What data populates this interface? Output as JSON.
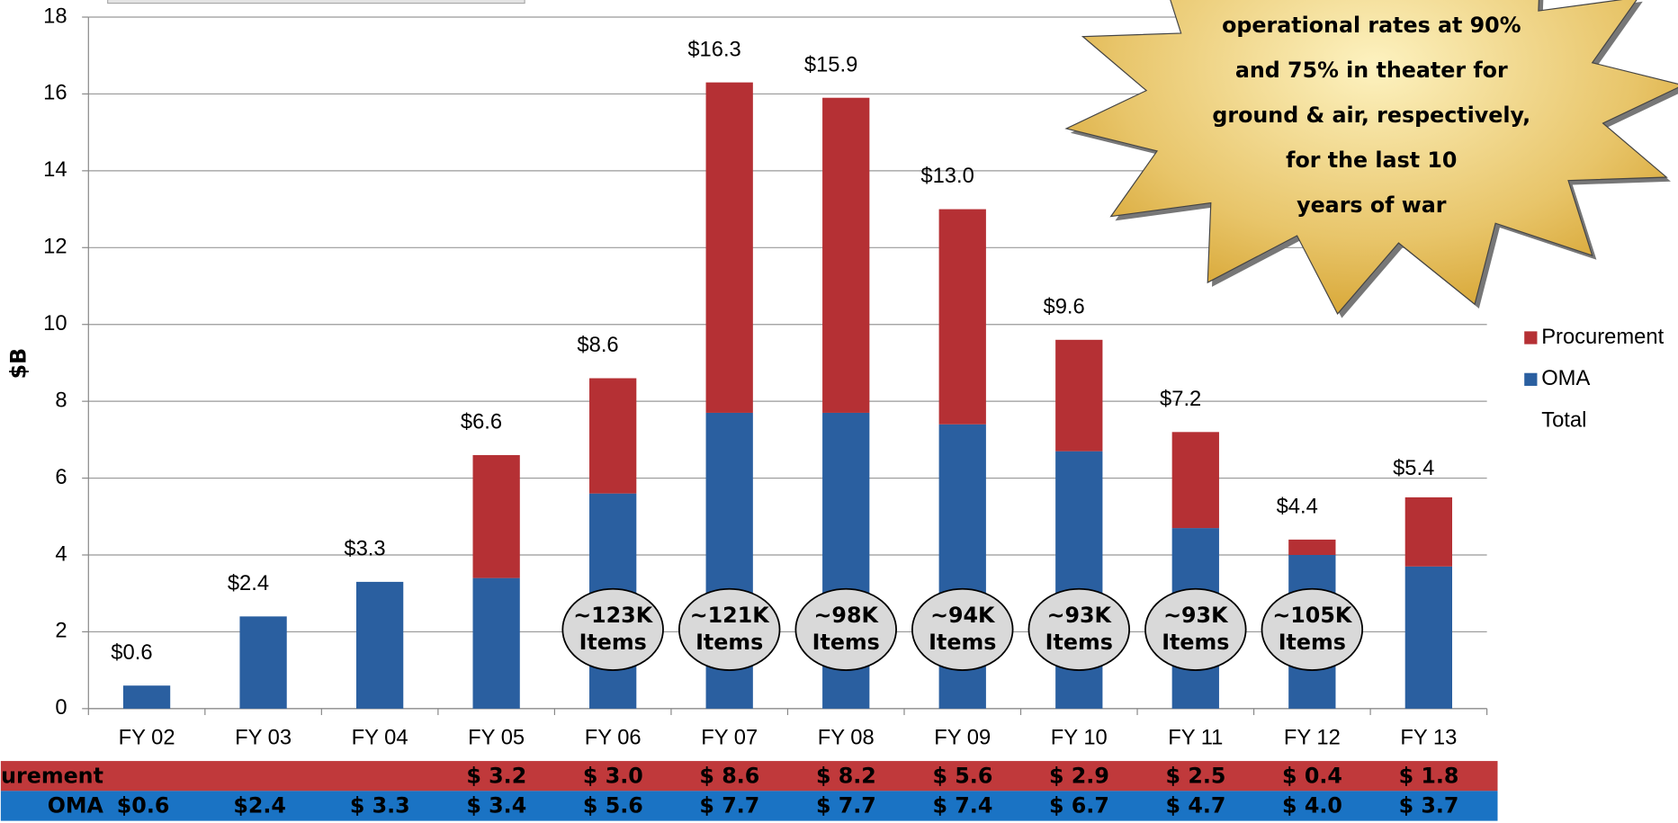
{
  "chart_data": {
    "type": "stacked_bar",
    "ylabel": "$B",
    "categories": [
      "FY 02",
      "FY 03",
      "FY 04",
      "FY 05",
      "FY 06",
      "FY 07",
      "FY 08",
      "FY 09",
      "FY 10",
      "FY 11",
      "FY 12",
      "FY 13"
    ],
    "series": [
      {
        "name": "Procurement",
        "color": "#b53034",
        "values": [
          null,
          null,
          null,
          3.2,
          3.0,
          8.6,
          8.2,
          5.6,
          2.9,
          2.5,
          0.4,
          1.8
        ]
      },
      {
        "name": "OMA",
        "color": "#2a5fa0",
        "values": [
          0.6,
          2.4,
          3.3,
          3.4,
          5.6,
          7.7,
          7.7,
          7.4,
          6.7,
          4.7,
          4.0,
          3.7
        ]
      },
      {
        "name": "Total",
        "values": [
          0.6,
          2.4,
          3.3,
          6.6,
          8.6,
          16.3,
          15.9,
          13.0,
          9.6,
          7.2,
          4.4,
          5.4
        ],
        "value_labels": [
          "$0.6",
          "$2.4",
          "$3.3",
          "$6.6",
          "$8.6",
          "$16.3",
          "$15.9",
          "$13.0",
          "$9.6",
          "$7.2",
          "$4.4",
          "$5.4"
        ]
      }
    ],
    "ylim": [
      0,
      18
    ],
    "yticks": [
      0,
      2,
      4,
      6,
      8,
      10,
      12,
      14,
      16,
      18
    ],
    "grid": true,
    "legend": "right",
    "item_counts": [
      null,
      null,
      null,
      null,
      "~123K",
      "~121K",
      "~98K",
      "~94K",
      "~93K",
      "~93K",
      "~105K",
      null
    ],
    "item_unit": "Items",
    "callout": [
      "operational rates at 90%",
      "and 75% in theater for",
      "ground & air, respectively,",
      "for the last 10",
      "years of war"
    ],
    "table": {
      "rows": [
        {
          "label": "Procurement",
          "cells": [
            null,
            null,
            null,
            "$ 3.2",
            "$ 3.0",
            "$ 8.6",
            "$ 8.2",
            "$ 5.6",
            "$ 2.9",
            "$ 2.5",
            "$ 0.4",
            "$ 1.8"
          ]
        },
        {
          "label": "OMA",
          "cells": [
            "$0.6",
            "$2.4",
            "$ 3.3",
            "$ 3.4",
            "$ 5.6",
            "$ 7.7",
            "$ 7.7",
            "$ 7.4",
            "$ 6.7",
            "$ 4.7",
            "$ 4.0",
            "$ 3.7"
          ]
        }
      ]
    }
  }
}
